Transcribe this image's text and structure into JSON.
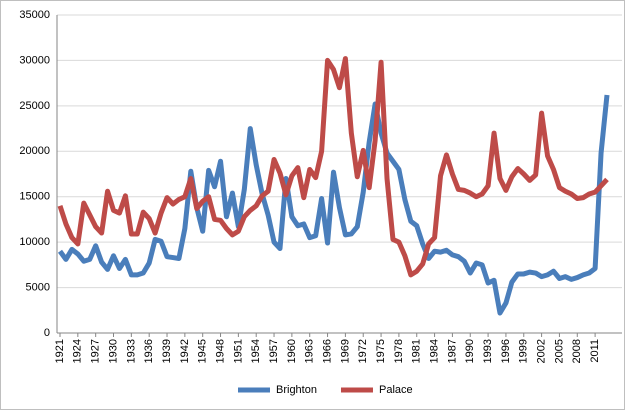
{
  "chart_data": {
    "type": "line",
    "x": [
      1921,
      1922,
      1923,
      1924,
      1925,
      1926,
      1927,
      1928,
      1929,
      1930,
      1931,
      1932,
      1933,
      1934,
      1935,
      1936,
      1937,
      1938,
      1939,
      1940,
      1941,
      1942,
      1943,
      1944,
      1945,
      1946,
      1947,
      1948,
      1949,
      1950,
      1951,
      1952,
      1953,
      1954,
      1955,
      1956,
      1957,
      1958,
      1959,
      1960,
      1961,
      1962,
      1963,
      1964,
      1965,
      1966,
      1967,
      1968,
      1969,
      1970,
      1971,
      1972,
      1973,
      1974,
      1975,
      1976,
      1977,
      1978,
      1979,
      1980,
      1981,
      1982,
      1983,
      1984,
      1985,
      1986,
      1987,
      1988,
      1989,
      1990,
      1991,
      1992,
      1993,
      1994,
      1995,
      1996,
      1997,
      1998,
      1999,
      2000,
      2001,
      2002,
      2003,
      2004,
      2005,
      2006,
      2007,
      2008,
      2009,
      2010,
      2011,
      2012,
      2013
    ],
    "series": [
      {
        "name": "Brighton",
        "color": "#4a7ebb",
        "values": [
          9000,
          8100,
          9200,
          8700,
          7900,
          8100,
          9600,
          7800,
          7000,
          8500,
          7100,
          8100,
          6400,
          6400,
          6600,
          7700,
          10300,
          10100,
          8400,
          8300,
          8200,
          11500,
          17800,
          13800,
          11200,
          17900,
          16100,
          18900,
          12800,
          15400,
          11700,
          15800,
          22500,
          18500,
          15300,
          13000,
          10000,
          9300,
          17000,
          12800,
          11800,
          12000,
          10500,
          10700,
          14800,
          9900,
          17700,
          13800,
          10800,
          10900,
          11700,
          15500,
          21000,
          25200,
          22000,
          19800,
          18900,
          18000,
          14700,
          12300,
          11800,
          9800,
          8200,
          9000,
          8900,
          9100,
          8600,
          8400,
          7900,
          6600,
          7700,
          7500,
          5500,
          5800,
          2200,
          3300,
          5600,
          6500,
          6500,
          6700,
          6600,
          6200,
          6400,
          6800,
          6000,
          6200,
          5900,
          6100,
          6400,
          6600,
          7100,
          19800,
          26200
        ]
      },
      {
        "name": "Palace",
        "color": "#be4b48",
        "values": [
          14000,
          12000,
          10500,
          9800,
          14300,
          13000,
          11700,
          11000,
          15600,
          13500,
          13200,
          15100,
          10900,
          10900,
          13300,
          12600,
          11000,
          13200,
          14900,
          14200,
          14700,
          15000,
          17000,
          13700,
          14500,
          15000,
          12500,
          12400,
          11500,
          10800,
          11200,
          12800,
          13500,
          14000,
          15100,
          15600,
          19100,
          17600,
          15200,
          17300,
          18200,
          14900,
          18000,
          17100,
          20000,
          30000,
          29000,
          27000,
          30200,
          22000,
          17200,
          20100,
          16000,
          21200,
          29800,
          17000,
          10300,
          10000,
          8500,
          6400,
          6800,
          7600,
          9800,
          10500,
          17300,
          19600,
          17500,
          15800,
          15700,
          15400,
          15000,
          15300,
          16200,
          22000,
          17000,
          15700,
          17200,
          18100,
          17500,
          16800,
          17400,
          24200,
          19500,
          18000,
          16000,
          15600,
          15300,
          14800,
          14900,
          15300,
          15500,
          16200,
          16900
        ]
      }
    ],
    "xlim": [
      1921,
      2013
    ],
    "xticks": [
      1921,
      1924,
      1927,
      1930,
      1933,
      1936,
      1939,
      1942,
      1945,
      1948,
      1951,
      1954,
      1957,
      1960,
      1963,
      1966,
      1969,
      1972,
      1975,
      1978,
      1981,
      1984,
      1987,
      1990,
      1993,
      1996,
      1999,
      2002,
      2005,
      2008,
      2011
    ],
    "ylim": [
      0,
      35000
    ],
    "yticks": [
      0,
      5000,
      10000,
      15000,
      20000,
      25000,
      30000,
      35000
    ],
    "grid": true,
    "legend": "bottom"
  }
}
